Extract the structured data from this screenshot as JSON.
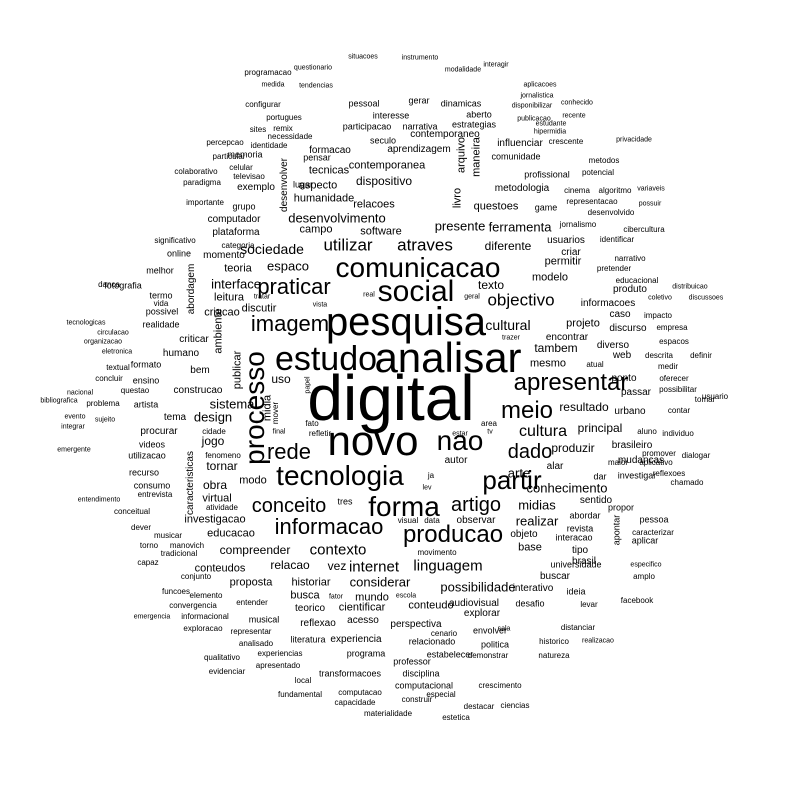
{
  "words": {
    "digital": "digital",
    "novo": "novo",
    "analisar": "analisar",
    "estudo": "estudo",
    "pesquisa": "pesquisa",
    "social": "social",
    "comunicacao": "comunicacao",
    "tecnologia": "tecnologia",
    "processo": "processo",
    "nao": "nao",
    "forma": "forma",
    "producao": "producao",
    "apresentar": "apresentar",
    "partir": "partir",
    "meio": "meio",
    "praticar": "praticar",
    "imagem": "imagem",
    "rede": "rede",
    "informacao": "informacao",
    "conceito": "conceito",
    "artigo": "artigo",
    "dado": "dado",
    "cultura": "cultura",
    "contexto": "contexto",
    "internet": "internet",
    "linguagem": "linguagem",
    "utilizar": "utilizar",
    "atraves": "atraves",
    "objectivo": "objectivo",
    "cultural": "cultural",
    "sistema": "sistema",
    "design": "design",
    "interface": "interface",
    "sociedade": "sociedade",
    "espaco": "espaco",
    "desenvolvimento": "desenvolvimento",
    "arte": "arte",
    "midias": "midias",
    "realizar": "realizar",
    "conhecimento": "conhecimento",
    "resultado": "resultado",
    "principal": "principal",
    "produzir": "produzir",
    "compreender": "compreender",
    "considerar": "considerar",
    "possibilidade": "possibilidade",
    "relacao": "relacao",
    "vez": "vez",
    "mundo": "mundo",
    "historiar": "historiar",
    "busca": "busca",
    "cientificar": "cientificar",
    "conteudo": "conteudo",
    "audiovisual": "audiovisual",
    "dispositivo": "dispositivo",
    "presente": "presente",
    "ferramenta": "ferramenta",
    "diferente": "diferente",
    "texto": "texto",
    "modelo": "modelo",
    "permitir": "permitir",
    "projeto": "projeto",
    "tambem": "tambem",
    "mesmo": "mesmo",
    "jogo": "jogo",
    "obra": "obra",
    "tornar": "tornar",
    "modo": "modo",
    "virtual": "virtual",
    "investigacao": "investigacao",
    "educacao": "educacao",
    "conteudos": "conteudos",
    "proposta": "proposta",
    "teoria": "teoria",
    "leitura": "leitura",
    "criacao": "criacao",
    "discutir": "discutir",
    "campo": "campo",
    "humanidade": "humanidade",
    "aspecto": "aspecto",
    "relacoes": "relacoes",
    "questoes": "questoes",
    "game": "game",
    "metodologia": "metodologia",
    "grupo": "grupo",
    "plataforma": "plataforma",
    "computador": "computador",
    "contemporanea": "contemporanea",
    "tecnicas": "tecnicas",
    "software": "software",
    "livro": "livro",
    "arquivo": "arquivo",
    "maneira": "maneira",
    "base": "base",
    "objeto": "objeto",
    "observar": "observar",
    "autor": "autor",
    "explorar": "explorar",
    "acesso": "acesso",
    "perspectiva": "perspectiva",
    "reflexao": "reflexao",
    "experiencia": "experiencia",
    "publicar": "publicar",
    "ambiente": "ambiente",
    "midia": "midia",
    "uso": "uso",
    "mudancas": "mudancas",
    "brasil": "brasil",
    "urbano": "urbano",
    "passar": "passar",
    "ponto": "ponto",
    "web": "web",
    "caso": "caso",
    "diverso": "diverso",
    "encontrar": "encontrar",
    "discurso": "discurso",
    "produto": "produto",
    "informacoes": "informacoes",
    "usuarios": "usuarios",
    "criar": "criar",
    "momento": "momento",
    "abordagem": "abordagem",
    "criticar": "criticar",
    "humano": "humano",
    "bem": "bem",
    "construcao": "construcao",
    "tema": "tema",
    "procurar": "procurar",
    "caracteristicas": "caracteristicas",
    "sentido": "sentido",
    "brasileiro": "brasileiro",
    "tipo": "tipo",
    "interativo": "interativo",
    "buscar": "buscar",
    "teorico": "teorico",
    "formacao": "formacao",
    "aprendizagem": "aprendizagem",
    "contemporaneo": "contemporaneo",
    "influenciar": "influenciar",
    "comunidade": "comunidade",
    "profissional": "profissional",
    "narrativa": "narrativa",
    "estrategias": "estrategias",
    "seculo": "seculo",
    "participacao": "participacao",
    "pensar": "pensar",
    "memoria": "memoria",
    "exemplo": "exemplo",
    "lugar": "lugar",
    "desenvolver": "desenvolver",
    "dinamicas": "dinamicas",
    "pessoal": "pessoal",
    "interesse": "interesse",
    "aberto": "aberto",
    "gerar": "gerar",
    "musical": "musical",
    "fenomeno": "fenomeno",
    "relacionado": "relacionado",
    "programa": "programa",
    "disciplina": "disciplina",
    "professor": "professor",
    "computacional": "computacional",
    "estabelecer": "estabelecer",
    "envolver": "envolver",
    "politica": "politica",
    "historico": "historico",
    "desafio": "desafio",
    "ideia": "ideia",
    "levar": "levar",
    "aplicar": "aplicar",
    "apontar": "apontar",
    "interacao": "interacao",
    "universidade": "universidade",
    "revista": "revista",
    "abordar": "abordar",
    "possibilitar": "possibilitar",
    "propor": "propor",
    "pessoa": "pessoa",
    "investigar": "investigar",
    "chamado": "chamado",
    "contar": "contar",
    "aluno": "aluno",
    "maior": "maior",
    "aplicativo": "aplicativo",
    "oferecer": "oferecer",
    "amplo": "amplo",
    "dialogar": "dialogar",
    "virtuais": "virtuais",
    "materialidade": "materialidade",
    "crescimento": "crescimento",
    "transformacoes": "transformacoes",
    "computacao": "computacao",
    "capacidade": "capacidade",
    "fundamental": "fundamental",
    "apresentado": "apresentado",
    "experiencias": "experiencias",
    "qualitativo": "qualitativo",
    "informacional": "informacional",
    "convergencia": "convergencia",
    "elemento": "elemento",
    "funcoes": "funcoes",
    "conjunto": "conjunto",
    "tradicional": "tradicional",
    "musicar": "musicar",
    "consumo": "consumo",
    "entrevista": "entrevista",
    "recurso": "recurso",
    "utilizacao": "utilizacao",
    "videos": "videos",
    "artista": "artista",
    "questao": "questao",
    "ensino": "ensino",
    "formato": "formato",
    "realidade": "realidade",
    "possivel": "possivel",
    "vida": "vida",
    "termo": "termo",
    "fotografia": "fotografia",
    "danca": "danca",
    "melhor": "melhor",
    "online": "online",
    "significativo": "significativo",
    "categoria": "categoria",
    "importante": "importante",
    "paradigma": "paradigma",
    "colaborativo": "colaborativo",
    "televisao": "televisao",
    "celular": "celular",
    "particular": "particular",
    "percepcao": "percepcao",
    "identidade": "identidade",
    "sites": "sites",
    "remix": "remix",
    "portugues": "portugues",
    "configurar": "configurar",
    "necessidade": "necessidade",
    "programacao": "programacao",
    "questionario": "questionario",
    "medida": "medida",
    "tendencias": "tendencias",
    "situacoes": "situacoes",
    "instrumento": "instrumento",
    "modalidade": "modalidade",
    "interagir": "interagir",
    "aplicacoes": "aplicacoes",
    "jornalistica": "jornalistica",
    "disponibilizar": "disponibilizar",
    "conhecido": "conhecido",
    "publicacao": "publicacao",
    "estudante": "estudante",
    "recente": "recente",
    "crescente": "crescente",
    "hipermidia": "hipermidia",
    "privacidade": "privacidade",
    "metodos": "metodos",
    "potencial": "potencial",
    "cinema": "cinema",
    "algoritmo": "algoritmo",
    "variaveis": "variaveis",
    "representacao": "representacao",
    "desenvolvido": "desenvolvido",
    "possuir": "possuir",
    "jornalismo": "jornalismo",
    "cibercultura": "cibercultura",
    "identificar": "identificar",
    "pretender": "pretender",
    "narrativo": "narrativo",
    "educacional": "educacional",
    "distribuicao": "distribuicao",
    "coletivo": "coletivo",
    "discussoes": "discussoes",
    "impacto": "impacto",
    "empresa": "empresa",
    "espacos": "espacos",
    "descrita": "descrita",
    "definir": "definir",
    "medir": "medir",
    "usuario": "usuario",
    "tomar": "tomar",
    "indivíduo": "individuo",
    "promover": "promover",
    "reflexoes": "reflexoes",
    "caracterizar": "caracterizar",
    "especifico": "especifico",
    "facebook": "facebook",
    "entender": "entender",
    "representar": "representar",
    "literatura": "literatura",
    "exploracao": "exploracao",
    "emergencia": "emergencia",
    "analisado": "analisado",
    "evidenciar": "evidenciar",
    "local": "local",
    "especial": "especial",
    "ciencias": "ciencias",
    "demonstrar": "demonstrar",
    "natureza": "natureza",
    "construir": "construir",
    "distanciar": "distanciar",
    "realizacao": "realizacao",
    "cenario": "cenario",
    "destacar": "destacar",
    "estetica": "estetica",
    "sujeito": "sujeito",
    "problema": "problema",
    "textual": "textual",
    "concluir": "concluir",
    "eletronica": "eletronica",
    "organizacao": "organizacao",
    "circulacao": "circulacao",
    "tecnologicas": "tecnologicas",
    "nacional": "nacional",
    "bibliografica": "bibliografica",
    "entendimento": "entendimento",
    "conceitual": "conceitual",
    "dever": "dever",
    "torno": "torno",
    "manovich": "manovich",
    "capaz": "capaz",
    "emergente": "emergente",
    "integrar": "integrar",
    "evento": "evento",
    "realizacao2": "ja",
    "tres": "tres",
    "visual": "visual",
    "data": "data",
    "movimento": "movimento",
    "escola": "escola",
    "fator": "fator",
    "pais": "pais",
    "sala": "sala",
    "cidade": "cidade",
    "atividade": "atividade",
    "refletir": "refletir",
    "fato": "fato",
    "mover": "mover",
    "final": "final",
    "papel": "papel",
    "vista": "vista",
    "tratar": "tratar",
    "real": "real",
    "geral": "geral",
    "trazer": "trazer",
    "atual": "atual",
    "alar": "alar",
    "area": "area",
    "dar": "dar",
    "tv": "tv",
    "estar": "estar",
    "lev": "lev"
  }
}
